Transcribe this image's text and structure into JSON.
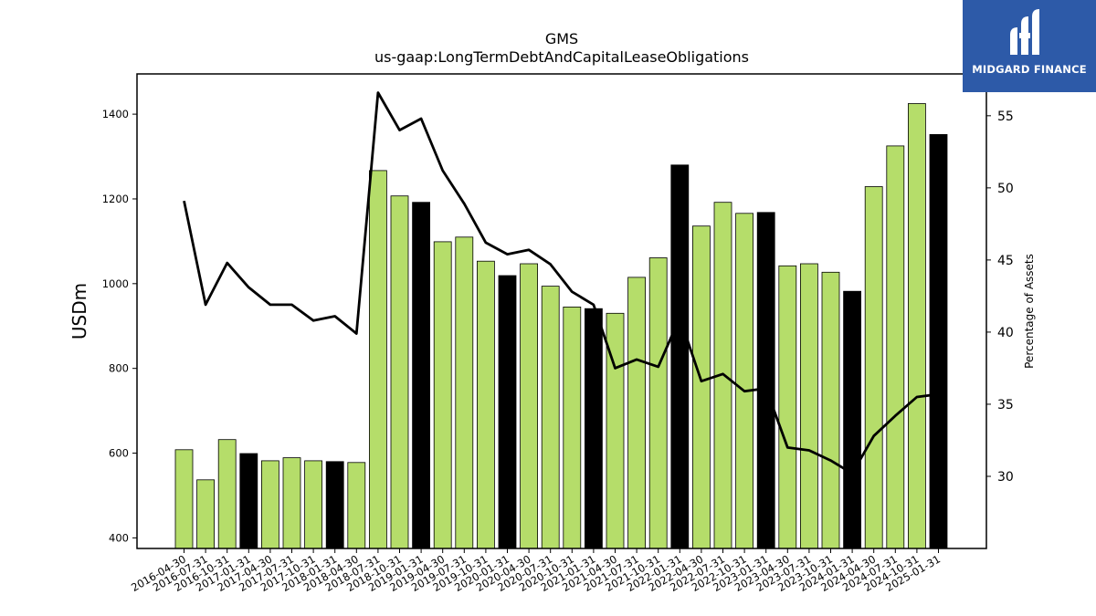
{
  "chart_data": {
    "type": "bar",
    "title": "GMS",
    "subtitle": "us-gaap:LongTermDebtAndCapitalLeaseObligations",
    "ylabel": "USDm",
    "y2label": "Percentage of Assets",
    "ylim": [
      375,
      1495
    ],
    "y2lim": [
      25,
      57.9
    ],
    "yticks": [
      400,
      600,
      800,
      1000,
      1200,
      1400
    ],
    "y2ticks": [
      30,
      35,
      40,
      45,
      50,
      55
    ],
    "categories": [
      "2016-04-30",
      "2016-07-31",
      "2016-10-31",
      "2017-01-31",
      "2017-04-30",
      "2017-07-31",
      "2017-10-31",
      "2018-01-31",
      "2018-04-30",
      "2018-07-31",
      "2018-10-31",
      "2019-01-31",
      "2019-04-30",
      "2019-07-31",
      "2019-10-31",
      "2020-01-31",
      "2020-04-30",
      "2020-07-31",
      "2020-10-31",
      "2021-01-31",
      "2021-04-30",
      "2021-07-31",
      "2021-10-31",
      "2022-01-31",
      "2022-04-30",
      "2022-07-31",
      "2022-10-31",
      "2023-01-31",
      "2023-04-30",
      "2023-07-31",
      "2023-10-31",
      "2024-01-31",
      "2024-04-30",
      "2024-07-31",
      "2024-10-31",
      "2025-01-31"
    ],
    "series": [
      {
        "type": "bar",
        "values": [
          608,
          537,
          632,
          599,
          582,
          589,
          582,
          580,
          578,
          1267,
          1207,
          1192,
          1099,
          1110,
          1053,
          1019,
          1047,
          994,
          945,
          941,
          930,
          1015,
          1061,
          1280,
          1136,
          1192,
          1166,
          1168,
          1042,
          1047,
          1027,
          982,
          1229,
          1325,
          1425,
          1352
        ],
        "highlight": [
          false,
          false,
          false,
          true,
          false,
          false,
          false,
          true,
          false,
          false,
          false,
          true,
          false,
          false,
          false,
          true,
          false,
          false,
          false,
          true,
          false,
          false,
          false,
          true,
          false,
          false,
          false,
          true,
          false,
          false,
          false,
          true,
          false,
          false,
          false,
          true
        ],
        "color": "#b5dd6a",
        "highlight_color": "#000000"
      },
      {
        "type": "line",
        "axis": "right",
        "values": [
          49.1,
          41.9,
          44.8,
          43.1,
          41.9,
          41.9,
          40.8,
          41.1,
          39.9,
          56.6,
          54.0,
          54.8,
          51.2,
          48.9,
          46.2,
          45.4,
          45.7,
          44.7,
          42.8,
          41.9,
          37.5,
          38.1,
          37.6,
          41.0,
          36.6,
          37.1,
          35.9,
          36.1,
          32.0,
          31.8,
          31.1,
          30.2,
          32.8,
          34.2,
          35.5,
          35.7
        ],
        "color": "#000000"
      }
    ],
    "grid": false
  },
  "logo": {
    "text": "MIDGARD FINANCE",
    "color": "#2d5aa8"
  }
}
